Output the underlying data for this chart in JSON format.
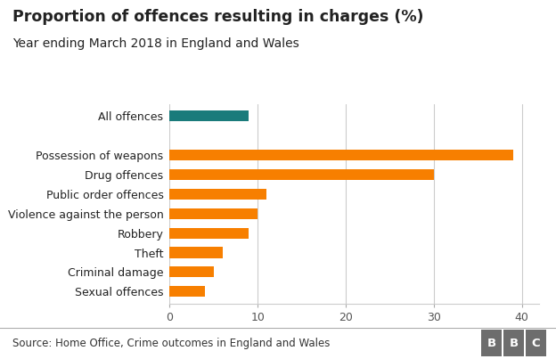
{
  "title": "Proportion of offences resulting in charges (%)",
  "subtitle": "Year ending March 2018 in England and Wales",
  "source": "Source: Home Office, Crime outcomes in England and Wales",
  "categories": [
    "Sexual offences",
    "Criminal damage",
    "Theft",
    "Robbery",
    "Violence against the person",
    "Public order offences",
    "Drug offences",
    "Possession of weapons",
    "",
    "All offences"
  ],
  "values": [
    4,
    5,
    6,
    9,
    10,
    11,
    30,
    39,
    0,
    9
  ],
  "colors": [
    "#f77f00",
    "#f77f00",
    "#f77f00",
    "#f77f00",
    "#f77f00",
    "#f77f00",
    "#f77f00",
    "#f77f00",
    "#ffffff",
    "#1a7b7b"
  ],
  "xlim": [
    0,
    42
  ],
  "xticks": [
    0,
    10,
    20,
    30,
    40
  ],
  "bar_height": 0.55,
  "title_fontsize": 12.5,
  "subtitle_fontsize": 10,
  "label_fontsize": 9,
  "tick_fontsize": 9,
  "source_fontsize": 8.5,
  "title_color": "#222222",
  "subtitle_color": "#222222",
  "label_color": "#222222",
  "tick_color": "#555555",
  "grid_color": "#cccccc",
  "bg_color": "#ffffff",
  "footer_bg": "#e8e8e8",
  "bbc_box_color": "#6d6d6d",
  "orange": "#f77f00",
  "teal": "#1a7b7b"
}
